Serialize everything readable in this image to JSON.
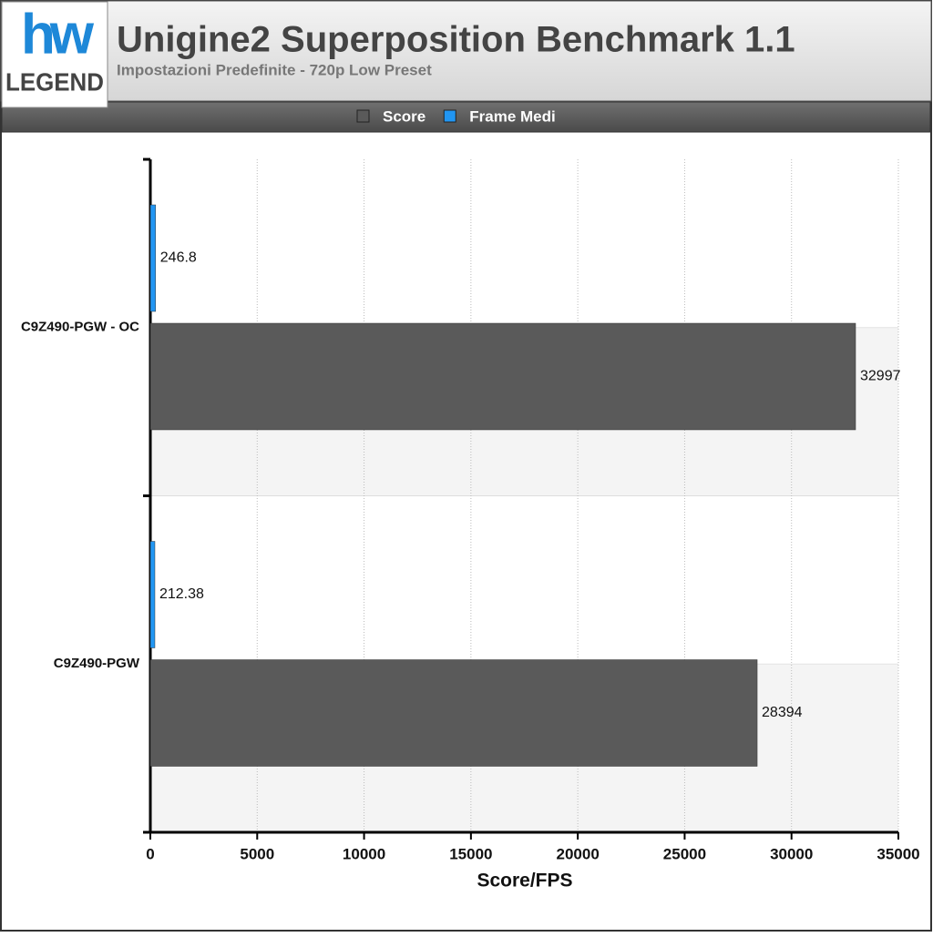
{
  "logo": {
    "mark": "hw",
    "text": "LEGEND"
  },
  "chart_data": {
    "type": "bar",
    "orientation": "horizontal",
    "title": "Unigine2 Superposition Benchmark 1.1",
    "subtitle": "Impostazioni Predefinite - 720p Low Preset",
    "x_label": "Score/FPS",
    "categories": [
      "C9Z490-PGW - OC",
      "C9Z490-PGW"
    ],
    "series": [
      {
        "name": "Score",
        "color": "#5a5a5a",
        "values": [
          32997,
          28394
        ]
      },
      {
        "name": "Frame Medi",
        "color": "#2196f3",
        "values": [
          246.8,
          212.38
        ]
      }
    ],
    "xlim": [
      0,
      35000
    ],
    "xticks": [
      0,
      5000,
      10000,
      15000,
      20000,
      25000,
      30000,
      35000
    ],
    "grid": true
  }
}
